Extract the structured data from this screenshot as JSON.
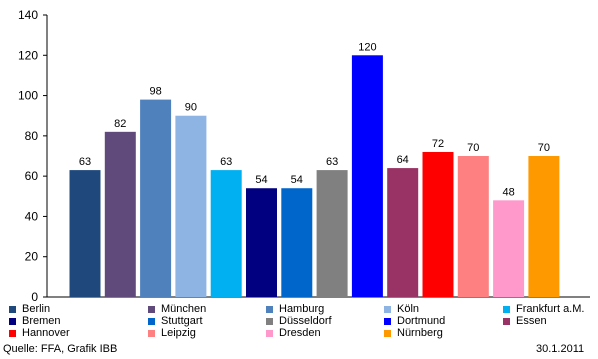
{
  "chart_data": {
    "type": "bar",
    "categories": [
      "Berlin",
      "München",
      "Hamburg",
      "Köln",
      "Frankfurt a.M.",
      "Bremen",
      "Stuttgart",
      "Düsseldorf",
      "Dortmund",
      "Essen",
      "Hannover",
      "Leipzig",
      "Dresden",
      "Nürnberg"
    ],
    "values": [
      63,
      82,
      98,
      90,
      63,
      54,
      54,
      63,
      120,
      64,
      72,
      70,
      48,
      70
    ],
    "colors": [
      "#1F497D",
      "#604A7B",
      "#4F81BD",
      "#8EB4E3",
      "#00B0F0",
      "#000080",
      "#0066CC",
      "#808080",
      "#0000FF",
      "#993366",
      "#FF0000",
      "#FF8080",
      "#FF99CC",
      "#FF9900"
    ],
    "ylim": [
      0,
      140
    ],
    "yticks": [
      "0",
      "20",
      "40",
      "60",
      "80",
      "100",
      "120",
      "140"
    ],
    "grid": false,
    "legend_placement": "bottom"
  },
  "footer": {
    "source": "Quelle: FFA, Grafik IBB",
    "date": "30.1.2011"
  }
}
